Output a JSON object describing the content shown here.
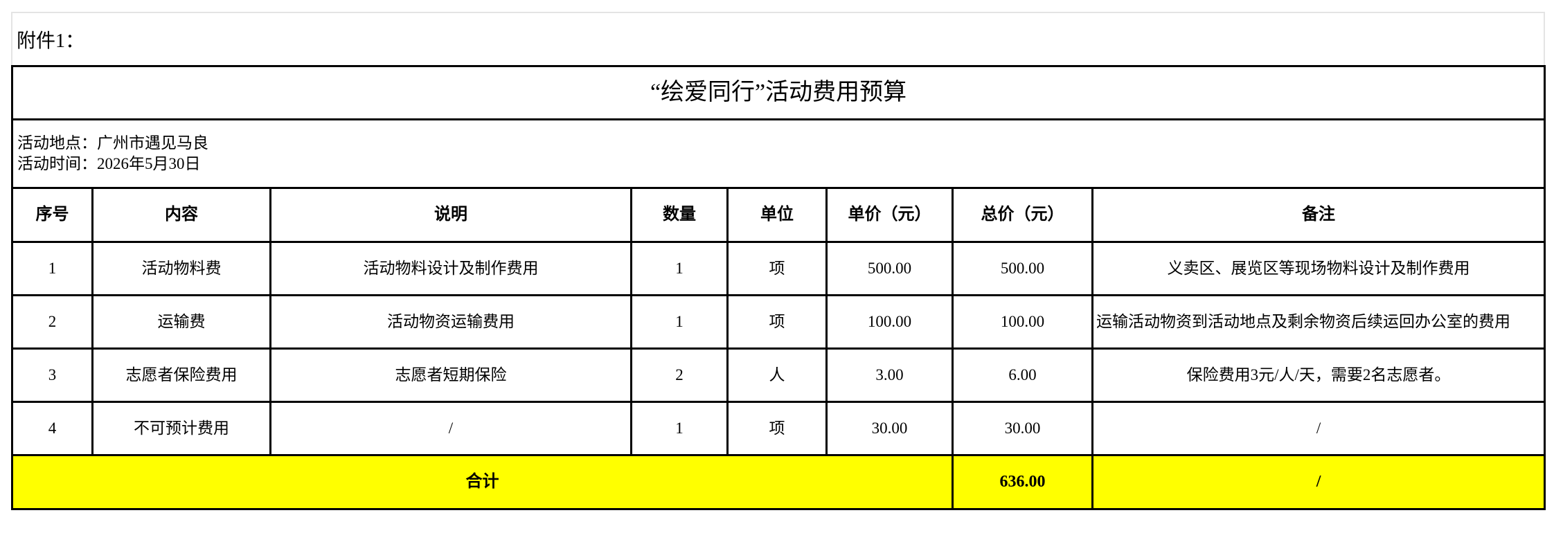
{
  "annex_label": "附件1：",
  "title": "“绘爱同行”活动费用预算",
  "info": {
    "location": "活动地点：广州市遇见马良",
    "time": "活动时间：2026年5月30日"
  },
  "columns": [
    "序号",
    "内容",
    "说明",
    "数量",
    "单位",
    "单价（元）",
    "总价（元）",
    "备注"
  ],
  "rows": [
    {
      "no": "1",
      "content": "活动物料费",
      "desc": "活动物料设计及制作费用",
      "qty": "1",
      "unit": "项",
      "price": "500.00",
      "total": "500.00",
      "note": "义卖区、展览区等现场物料设计及制作费用"
    },
    {
      "no": "2",
      "content": "运输费",
      "desc": "活动物资运输费用",
      "qty": "1",
      "unit": "项",
      "price": "100.00",
      "total": "100.00",
      "note": "运输活动物资到活动地点及剩余物资后续运回办公室的费用"
    },
    {
      "no": "3",
      "content": "志愿者保险费用",
      "desc": "志愿者短期保险",
      "qty": "2",
      "unit": "人",
      "price": "3.00",
      "total": "6.00",
      "note": "保险费用3元/人/天，需要2名志愿者。"
    },
    {
      "no": "4",
      "content": "不可预计费用",
      "desc": "/",
      "qty": "1",
      "unit": "项",
      "price": "30.00",
      "total": "30.00",
      "note": "/"
    }
  ],
  "summary": {
    "label": "合计",
    "total": "636.00",
    "note": "/"
  },
  "colors": {
    "total_row_bg": "#ffff00"
  }
}
